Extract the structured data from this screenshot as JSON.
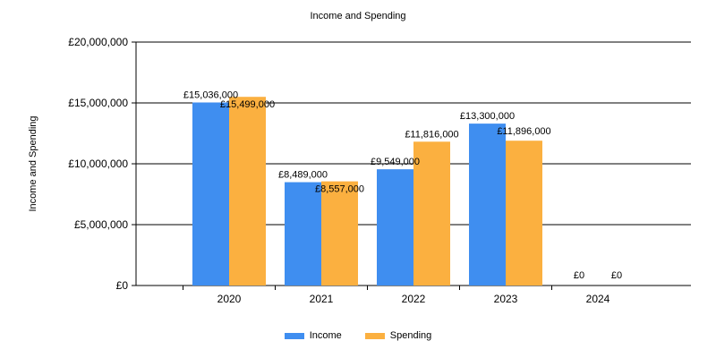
{
  "chart_data": {
    "type": "bar",
    "title": "Income and Spending",
    "xlabel": "",
    "ylabel": "Income and Spending",
    "categories": [
      "2020",
      "2021",
      "2022",
      "2023",
      "2024"
    ],
    "series": [
      {
        "name": "Income",
        "color": "#3f8ef0",
        "values": [
          15036000,
          8489000,
          9549000,
          13300000,
          0
        ],
        "labels": [
          "£15,036,000",
          "£8,489,000",
          "£9,549,000",
          "£13,300,000",
          "£0"
        ]
      },
      {
        "name": "Spending",
        "color": "#fbb040",
        "values": [
          15499000,
          8557000,
          11816000,
          11896000,
          0
        ],
        "labels": [
          "£15,499,000",
          "£8,557,000",
          "£11,816,000",
          "£11,896,000",
          "£0"
        ]
      }
    ],
    "ylim": [
      0,
      20000000
    ],
    "yticks": [
      0,
      5000000,
      10000000,
      15000000,
      20000000
    ],
    "ytick_labels": [
      "£0",
      "£5,000,000",
      "£10,000,000",
      "£15,000,000",
      "£20,000,000"
    ],
    "grid": true,
    "legend": "bottom-center"
  }
}
